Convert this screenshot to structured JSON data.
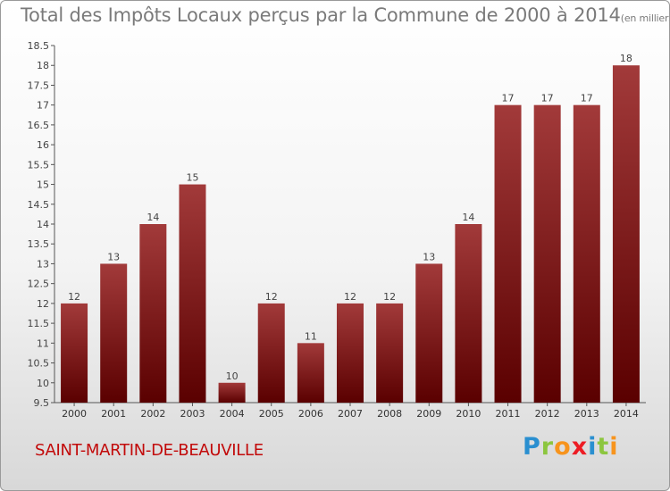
{
  "title": "Total des Impôts Locaux perçus par la Commune de 2000 à 2014",
  "title_unit": "(en milliers d'€)",
  "commune_name": "SAINT-MARTIN-DE-BEAUVILLE",
  "logo": {
    "letters": [
      "P",
      "r",
      "o",
      "x",
      "i",
      "t",
      "i"
    ],
    "colors": [
      "#2a8fd0",
      "#8cc63f",
      "#f7941d",
      "#ed1c24",
      "#2a8fd0",
      "#8cc63f",
      "#f7941d"
    ]
  },
  "colors": {
    "bar_top": "#a23a3a",
    "bar_bottom": "#5a0000",
    "commune": "#c20a0a"
  },
  "chart_data": {
    "type": "bar",
    "title": "Total des Impôts Locaux perçus par la Commune de 2000 à 2014",
    "xlabel": "",
    "ylabel": "",
    "categories": [
      "2000",
      "2001",
      "2002",
      "2003",
      "2004",
      "2005",
      "2006",
      "2007",
      "2008",
      "2009",
      "2010",
      "2011",
      "2012",
      "2013",
      "2014"
    ],
    "values": [
      12,
      13,
      14,
      15,
      10,
      12,
      11,
      12,
      12,
      13,
      14,
      17,
      17,
      17,
      18
    ],
    "ylim": [
      9.5,
      18.5
    ],
    "yticks": [
      "9.5",
      "10",
      "10.5",
      "11",
      "11.5",
      "12",
      "12.5",
      "13",
      "13.5",
      "14",
      "14.5",
      "15",
      "15.5",
      "16",
      "16.5",
      "17",
      "17.5",
      "18",
      "18.5"
    ],
    "grid": false
  }
}
